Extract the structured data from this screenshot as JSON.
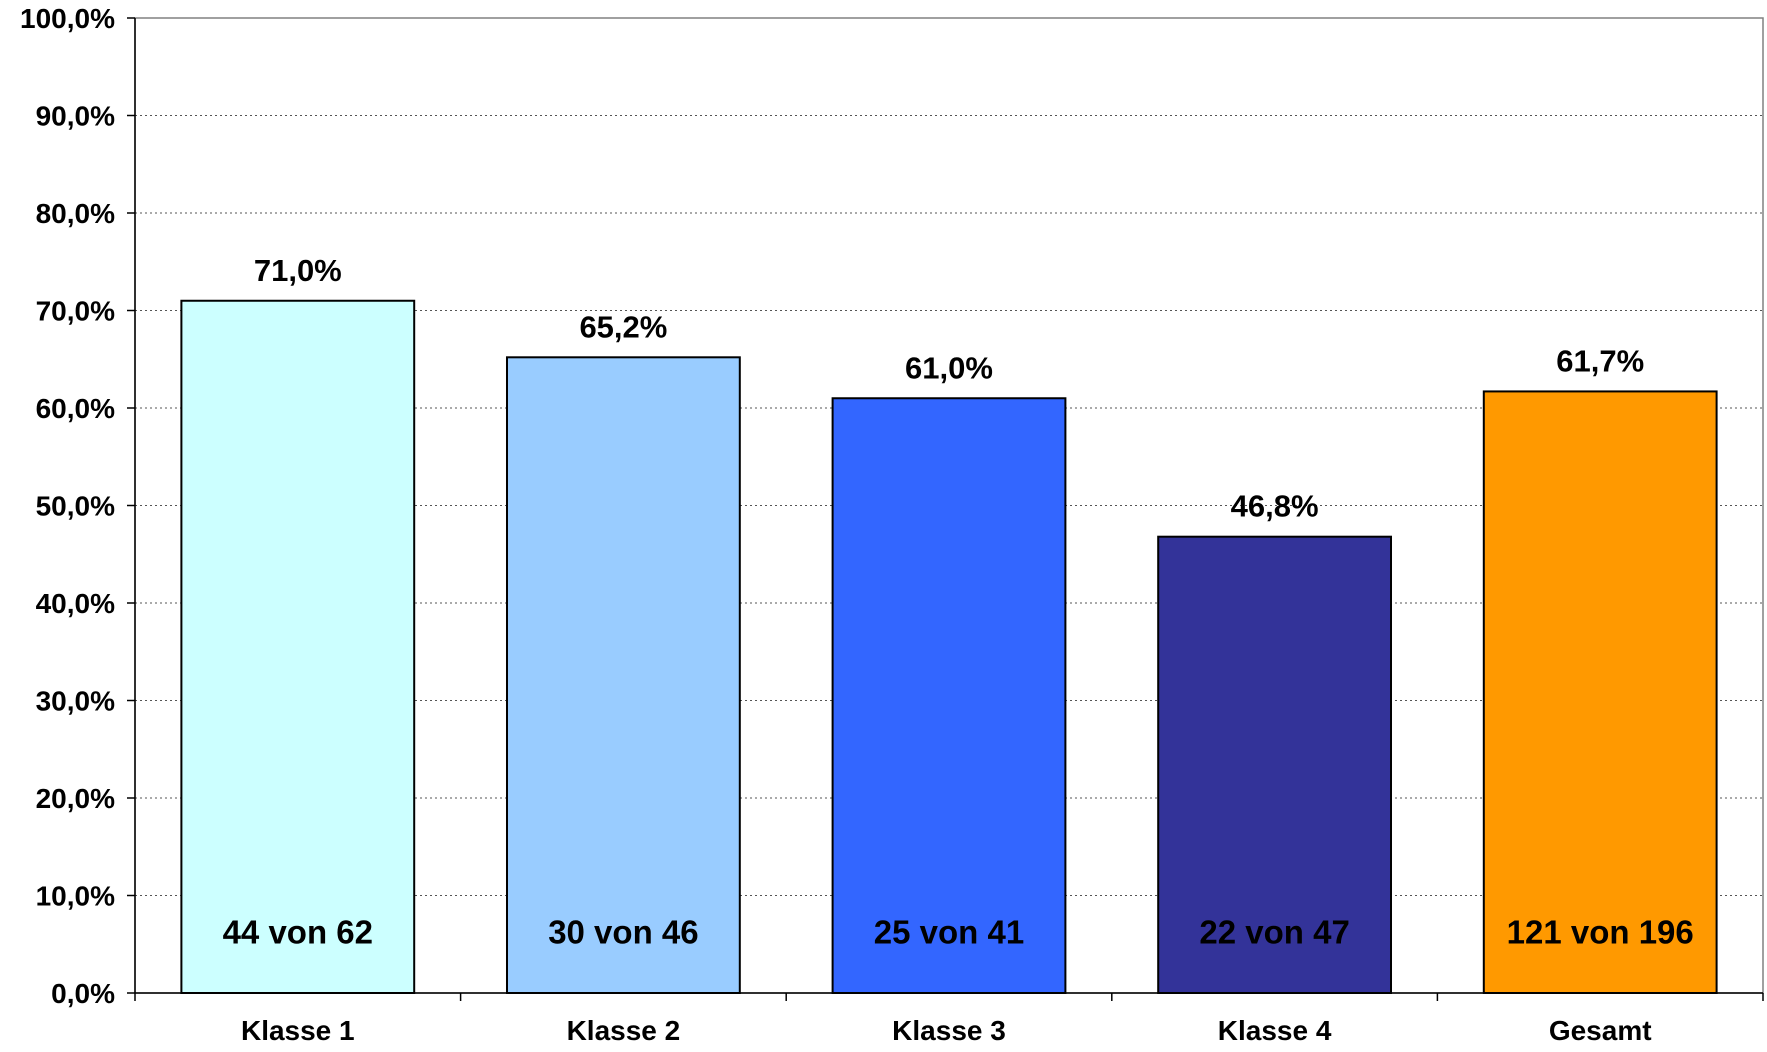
{
  "chart_data": {
    "type": "bar",
    "categories": [
      "Klasse 1",
      "Klasse 2",
      "Klasse 3",
      "Klasse 4",
      "Gesamt"
    ],
    "values": [
      71.0,
      65.2,
      61.0,
      46.8,
      61.7
    ],
    "value_labels": [
      "71,0%",
      "65,2%",
      "61,0%",
      "46,8%",
      "61,7%"
    ],
    "inner_labels": [
      "44 von 62",
      "30 von 46",
      "25 von 41",
      "22 von 47",
      "121 von 196"
    ],
    "bar_colors": [
      "#CCFFFF",
      "#99CCFF",
      "#3366FF",
      "#333399",
      "#FF9900"
    ],
    "y_ticks": [
      0,
      10,
      20,
      30,
      40,
      50,
      60,
      70,
      80,
      90,
      100
    ],
    "y_tick_labels": [
      "0,0%",
      "10,0%",
      "20,0%",
      "30,0%",
      "40,0%",
      "50,0%",
      "60,0%",
      "70,0%",
      "80,0%",
      "90,0%",
      "100,0%"
    ],
    "ylim": [
      0,
      100
    ],
    "title": "",
    "xlabel": "",
    "ylabel": "",
    "grid": true,
    "grid_style": "dotted",
    "legend": false
  }
}
